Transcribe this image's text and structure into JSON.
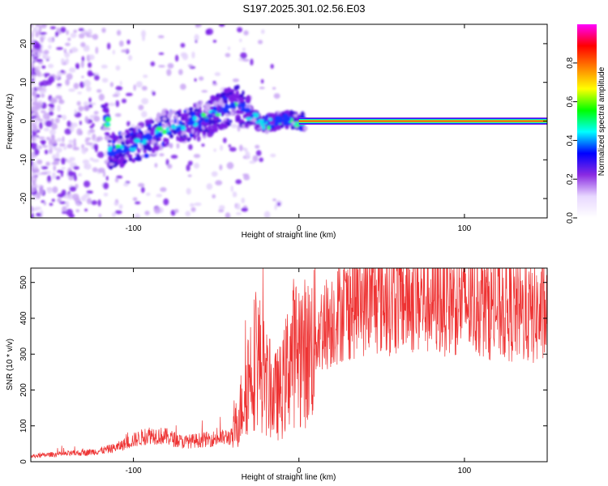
{
  "title": "S197.2025.301.02.56.E03",
  "chart_data": [
    {
      "type": "heatmap",
      "name": "spectrogram",
      "xlabel": "Height of straight line (km)",
      "ylabel": "Frequency (Hz)",
      "xlim": [
        -162,
        150
      ],
      "ylim": [
        -25,
        25
      ],
      "xticks": [
        -100,
        0,
        100
      ],
      "yticks": [
        -20,
        -10,
        0,
        10,
        20
      ],
      "colorbar": {
        "label": "Normalized spectral amplitude",
        "range": [
          0,
          1
        ],
        "ticks": [
          0.0,
          0.2,
          0.4,
          0.6,
          0.8
        ],
        "tick_labels": [
          "0.0",
          "0.2",
          "0.4",
          "0.6",
          "0.8"
        ],
        "colormap": [
          "#ffffff",
          "#e8d8ff",
          "#8a2be2",
          "#0000ff",
          "#00ffff",
          "#00ff00",
          "#ffff00",
          "#ff8000",
          "#ff0000",
          "#ff00ff"
        ]
      },
      "signal_track": [
        {
          "x": -115,
          "freq": -8.0
        },
        {
          "x": -100,
          "freq": -6.5
        },
        {
          "x": -85,
          "freq": -3.0
        },
        {
          "x": -70,
          "freq": -1.0
        },
        {
          "x": -55,
          "freq": 1.0
        },
        {
          "x": -45,
          "freq": 3.0
        },
        {
          "x": -38,
          "freq": 5.0
        },
        {
          "x": -30,
          "freq": 1.5
        },
        {
          "x": -20,
          "freq": -1.0
        },
        {
          "x": -10,
          "freq": 0.5
        },
        {
          "x": 0,
          "freq": 0.0
        },
        {
          "x": 150,
          "freq": 0.0
        }
      ]
    },
    {
      "type": "line",
      "name": "snr",
      "xlabel": "Height of straight line (km)",
      "ylabel": "SNR (10 * v/v)",
      "xlim": [
        -162,
        150
      ],
      "ylim": [
        0,
        540
      ],
      "xticks": [
        -100,
        0,
        100
      ],
      "yticks": [
        0,
        100,
        200,
        300,
        400,
        500
      ],
      "color": "#ee3333",
      "series": [
        {
          "name": "SNR",
          "x": [
            -162,
            -150,
            -140,
            -130,
            -120,
            -110,
            -100,
            -90,
            -80,
            -70,
            -60,
            -50,
            -40,
            -35,
            -30,
            -25,
            -20,
            -15,
            -10,
            -5,
            0,
            5,
            10,
            15,
            20,
            25,
            30,
            40,
            50,
            60,
            70,
            80,
            90,
            100,
            110,
            120,
            130,
            140,
            150
          ],
          "y": [
            15,
            20,
            22,
            25,
            30,
            40,
            60,
            75,
            70,
            55,
            60,
            65,
            70,
            150,
            250,
            300,
            220,
            180,
            200,
            300,
            320,
            300,
            350,
            380,
            400,
            420,
            430,
            450,
            450,
            455,
            455,
            450,
            450,
            445,
            440,
            430,
            420,
            410,
            410
          ]
        }
      ]
    }
  ]
}
